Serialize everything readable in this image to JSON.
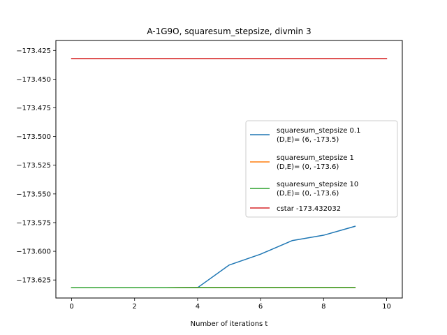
{
  "chart_data": {
    "type": "line",
    "title": "A-1G9O, squaresum_stepsize, divmin 3",
    "xlabel": "Number of iterations t",
    "ylabel": "",
    "xlim": [
      -0.5,
      10.5
    ],
    "ylim": [
      -173.6407,
      -173.4163
    ],
    "xticks": [
      0,
      2,
      4,
      6,
      8,
      10
    ],
    "yticks": [
      -173.425,
      -173.45,
      -173.475,
      -173.5,
      -173.525,
      -173.55,
      -173.575,
      -173.6,
      -173.625
    ],
    "ytick_labels": [
      "−173.425",
      "−173.450",
      "−173.475",
      "−173.500",
      "−173.525",
      "−173.550",
      "−173.575",
      "−173.600",
      "−173.625"
    ],
    "grid": false,
    "legend_position": "center-right",
    "series": [
      {
        "name": "squaresum_stepsize 0.1",
        "name_line2": "(D,E)= (6, -173.5)",
        "color": "#1f77b4",
        "x": [
          0,
          1,
          2,
          3,
          4,
          5,
          6,
          7,
          8,
          9
        ],
        "y": [
          -173.6317,
          -173.6317,
          -173.6317,
          -173.6317,
          -173.6317,
          -173.612,
          -173.6025,
          -173.5907,
          -173.586,
          -173.5782
        ]
      },
      {
        "name": "squaresum_stepsize 1",
        "name_line2": "(D,E)= (0, -173.6)",
        "color": "#ff7f0e",
        "x": [
          0,
          1,
          2,
          3,
          4,
          5,
          6,
          7,
          8,
          9
        ],
        "y": [
          -173.6317,
          -173.6317,
          -173.6317,
          -173.6317,
          -173.6316,
          -173.6316,
          -173.6316,
          -173.6316,
          -173.6316,
          -173.6316
        ]
      },
      {
        "name": "squaresum_stepsize 10",
        "name_line2": "(D,E)= (0, -173.6)",
        "color": "#2ca02c",
        "x": [
          0,
          1,
          2,
          3,
          4,
          5,
          6,
          7,
          8,
          9
        ],
        "y": [
          -173.6317,
          -173.6317,
          -173.6317,
          -173.6317,
          -173.6316,
          -173.6316,
          -173.6316,
          -173.6316,
          -173.6316,
          -173.6316
        ]
      },
      {
        "name": "cstar -173.432032",
        "name_line2": "",
        "color": "#d62728",
        "x": [
          0,
          10
        ],
        "y": [
          -173.432032,
          -173.432032
        ]
      }
    ]
  }
}
